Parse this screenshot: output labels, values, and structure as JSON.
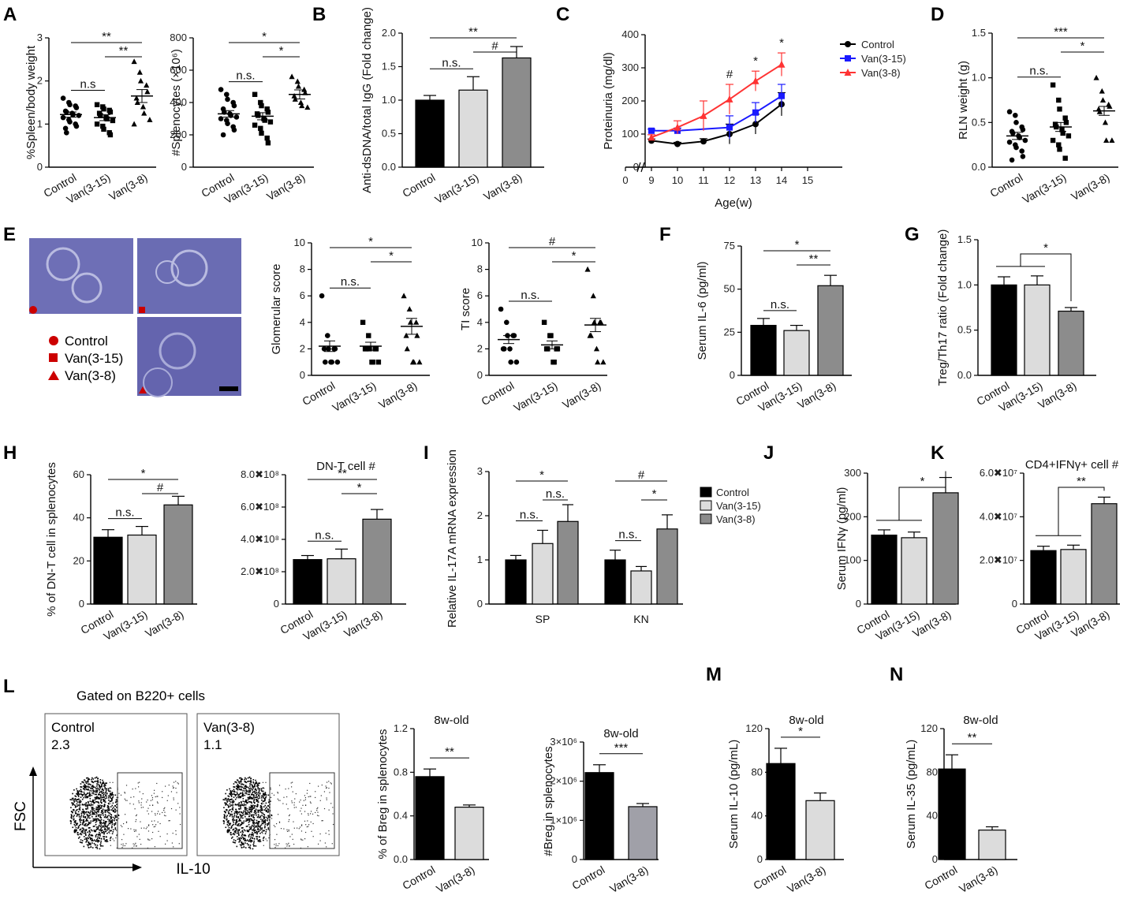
{
  "figure": {
    "panel_letters": [
      "A",
      "B",
      "C",
      "D",
      "E",
      "F",
      "G",
      "H",
      "I",
      "J",
      "K",
      "L",
      "M",
      "N"
    ],
    "groups": [
      "Control",
      "Van(3-15)",
      "Van(3-8)"
    ],
    "colors": {
      "control": "#000000",
      "van315": "#dcdcdc",
      "van38": "#8c8c8c",
      "van38_dark": "#a0a0a8",
      "line_control": "#000000",
      "line_van315": "#1a1aff",
      "line_van38": "#ff3333",
      "histo": "#6a6ab4",
      "marker_red": "#cc0000"
    }
  },
  "panel_e": {
    "legend": [
      "Control",
      "Van(3-15)",
      "Van(3-8)"
    ],
    "image_names": [
      "control-kidney-histology",
      "van315-kidney-histology",
      "van38-kidney-histology"
    ]
  },
  "panel_l": {
    "title": "Gated on B220+ cells",
    "plots": [
      {
        "label": "Control",
        "value": "2.3"
      },
      {
        "label": "Van(3-8)",
        "value": "1.1"
      }
    ],
    "y_axis": "FSC",
    "x_axis": "IL-10"
  },
  "chart_data": [
    {
      "id": "A1",
      "type": "scatter",
      "ylabel": "%Spleen/body weight",
      "ylim": [
        0,
        3
      ],
      "ticks": [
        "0",
        "1",
        "2",
        "3"
      ],
      "categories": [
        "Control",
        "Van(3-15)",
        "Van(3-8)"
      ],
      "means": [
        1.22,
        1.15,
        1.65
      ],
      "sem": [
        0.06,
        0.07,
        0.15
      ],
      "markers": [
        "circle",
        "square",
        "triangle"
      ],
      "points": [
        [
          1.6,
          1.5,
          1.45,
          1.42,
          1.38,
          1.3,
          1.28,
          1.25,
          1.22,
          1.2,
          1.15,
          1.1,
          1.05,
          1.0,
          0.95,
          0.9,
          0.8
        ],
        [
          1.45,
          1.4,
          1.35,
          1.32,
          1.28,
          1.25,
          1.2,
          1.15,
          1.12,
          1.08,
          1.0,
          0.95,
          0.88,
          0.8,
          0.75
        ],
        [
          2.45,
          2.2,
          2.0,
          1.9,
          1.75,
          1.6,
          1.5,
          1.4,
          1.25,
          1.1,
          1.0
        ]
      ],
      "significance": [
        {
          "label": "n.s",
          "from": 0,
          "to": 1
        },
        {
          "label": "**",
          "from": 0,
          "to": 2
        },
        {
          "label": "**",
          "from": 1,
          "to": 2
        }
      ]
    },
    {
      "id": "A2",
      "type": "scatter",
      "ylabel": "#Splenocytes (×10⁶)",
      "ylim": [
        0,
        800
      ],
      "ticks": [
        "0",
        "200",
        "400",
        "600",
        "800"
      ],
      "categories": [
        "Control",
        "Van(3-15)",
        "Van(3-8)"
      ],
      "means": [
        330,
        315,
        450
      ],
      "sem": [
        20,
        22,
        28
      ],
      "markers": [
        "circle",
        "square",
        "triangle"
      ],
      "points": [
        [
          480,
          450,
          420,
          400,
          380,
          360,
          340,
          330,
          320,
          310,
          300,
          290,
          270,
          250,
          230,
          200
        ],
        [
          450,
          400,
          380,
          360,
          340,
          330,
          320,
          300,
          290,
          280,
          260,
          240,
          210,
          180,
          150
        ],
        [
          560,
          530,
          500,
          480,
          460,
          440,
          420,
          400,
          380,
          370
        ]
      ],
      "significance": [
        {
          "label": "n.s.",
          "from": 0,
          "to": 1
        },
        {
          "label": "*",
          "from": 0,
          "to": 2
        },
        {
          "label": "*",
          "from": 1,
          "to": 2
        }
      ]
    },
    {
      "id": "B",
      "type": "bar",
      "ylabel": "Anti-dsDNA/total IgG (Fold change)",
      "ylim": [
        0,
        2.0
      ],
      "ticks": [
        "0.0",
        "0.5",
        "1.0",
        "1.5",
        "2.0"
      ],
      "categories": [
        "Control",
        "Van(3-15)",
        "Van(3-8)"
      ],
      "values": [
        1.0,
        1.15,
        1.63
      ],
      "sem": [
        0.07,
        0.2,
        0.17
      ],
      "significance": [
        {
          "label": "n.s.",
          "from": 0,
          "to": 1
        },
        {
          "label": "**",
          "from": 0,
          "to": 2
        },
        {
          "label": "#",
          "from": 1,
          "to": 2
        }
      ]
    },
    {
      "id": "C",
      "type": "line",
      "ylabel": "Proteinuria (mg/dl)",
      "xlabel": "Age(w)",
      "ylim": [
        0,
        400
      ],
      "xlim": [
        8,
        15
      ],
      "xticks": [
        "0",
        "9",
        "10",
        "11",
        "12",
        "13",
        "14",
        "15"
      ],
      "yticks": [
        "0",
        "100",
        "200",
        "300",
        "400"
      ],
      "x": [
        9,
        10,
        11,
        12,
        13,
        14
      ],
      "series": [
        {
          "name": "Control",
          "values": [
            80,
            70,
            78,
            100,
            130,
            190
          ],
          "sem": [
            5,
            5,
            8,
            30,
            30,
            35
          ]
        },
        {
          "name": "Van(3-15)",
          "values": [
            110,
            110,
            null,
            120,
            165,
            215
          ],
          "sem": [
            5,
            8,
            0,
            35,
            30,
            35
          ]
        },
        {
          "name": "Van(3-8)",
          "values": [
            90,
            120,
            155,
            205,
            260,
            310
          ],
          "sem": [
            8,
            20,
            45,
            45,
            30,
            35
          ]
        }
      ],
      "annotations": [
        {
          "x": 12,
          "label": "#"
        },
        {
          "x": 13,
          "label": "*"
        },
        {
          "x": 14,
          "label": "*"
        }
      ]
    },
    {
      "id": "D",
      "type": "scatter",
      "ylabel": "RLN weight (g)",
      "ylim": [
        0,
        1.5
      ],
      "ticks": [
        "0.0",
        "0.5",
        "1.0",
        "1.5"
      ],
      "categories": [
        "Control",
        "Van(3-15)",
        "Van(3-8)"
      ],
      "means": [
        0.35,
        0.45,
        0.63
      ],
      "sem": [
        0.04,
        0.05,
        0.05
      ],
      "markers": [
        "circle",
        "square",
        "triangle"
      ],
      "points": [
        [
          0.62,
          0.58,
          0.5,
          0.45,
          0.42,
          0.4,
          0.38,
          0.35,
          0.33,
          0.3,
          0.28,
          0.25,
          0.22,
          0.18,
          0.12,
          0.08
        ],
        [
          0.92,
          0.75,
          0.65,
          0.55,
          0.5,
          0.48,
          0.45,
          0.42,
          0.38,
          0.35,
          0.3,
          0.25,
          0.2,
          0.1
        ],
        [
          1.0,
          0.85,
          0.75,
          0.7,
          0.68,
          0.65,
          0.62,
          0.5,
          0.3,
          0.3
        ]
      ],
      "significance": [
        {
          "label": "n.s.",
          "from": 0,
          "to": 1
        },
        {
          "label": "***",
          "from": 0,
          "to": 2
        },
        {
          "label": "*",
          "from": 1,
          "to": 2
        }
      ]
    },
    {
      "id": "E1",
      "type": "scatter",
      "ylabel": "Glomerular score",
      "ylim": [
        0,
        10
      ],
      "ticks": [
        "0",
        "2",
        "4",
        "6",
        "8",
        "10"
      ],
      "categories": [
        "Control",
        "Van(3-15)",
        "Van(3-8)"
      ],
      "means": [
        2.2,
        2.2,
        3.7
      ],
      "sem": [
        0.4,
        0.3,
        0.6
      ],
      "markers": [
        "circle",
        "square",
        "triangle"
      ],
      "points": [
        [
          6,
          3,
          2,
          2,
          2,
          2,
          1,
          1,
          1,
          1
        ],
        [
          4,
          3,
          2,
          2,
          2,
          2,
          2,
          1,
          1,
          1
        ],
        [
          6,
          5,
          4,
          4,
          3,
          3,
          2,
          1,
          1,
          1
        ]
      ],
      "significance": [
        {
          "label": "n.s.",
          "from": 0,
          "to": 1
        },
        {
          "label": "*",
          "from": 0,
          "to": 2
        },
        {
          "label": "*",
          "from": 1,
          "to": 2
        }
      ]
    },
    {
      "id": "E2",
      "type": "scatter",
      "ylabel": "TI score",
      "ylim": [
        0,
        10
      ],
      "ticks": [
        "0",
        "2",
        "4",
        "6",
        "8",
        "10"
      ],
      "categories": [
        "Control",
        "Van(3-15)",
        "Van(3-8)"
      ],
      "means": [
        2.7,
        2.3,
        3.8
      ],
      "sem": [
        0.3,
        0.3,
        0.5
      ],
      "markers": [
        "circle",
        "square",
        "triangle"
      ],
      "points": [
        [
          5,
          4,
          3,
          3,
          3,
          2,
          2,
          2,
          1,
          1
        ],
        [
          4,
          3,
          3,
          2,
          2,
          2,
          2,
          1,
          1
        ],
        [
          8,
          6,
          4,
          4,
          4,
          3,
          3,
          2,
          1,
          1
        ]
      ],
      "significance": [
        {
          "label": "n.s.",
          "from": 0,
          "to": 1
        },
        {
          "label": "#",
          "from": 0,
          "to": 2
        },
        {
          "label": "*",
          "from": 1,
          "to": 2
        }
      ]
    },
    {
      "id": "F",
      "type": "bar",
      "ylabel": "Serum IL-6 (pg/ml)",
      "ylim": [
        0,
        75
      ],
      "ticks": [
        "0",
        "25",
        "50",
        "75"
      ],
      "categories": [
        "Control",
        "Van(3-15)",
        "Van(3-8)"
      ],
      "values": [
        29,
        26,
        52
      ],
      "sem": [
        4,
        3,
        6
      ],
      "significance": [
        {
          "label": "n.s.",
          "from": 0,
          "to": 1
        },
        {
          "label": "*",
          "from": 0,
          "to": 2
        },
        {
          "label": "**",
          "from": 1,
          "to": 2
        }
      ]
    },
    {
      "id": "G",
      "type": "bar",
      "ylabel": "Treg/Th17 ratio (Fold change)",
      "ylim": [
        0,
        1.5
      ],
      "ticks": [
        "0.0",
        "0.5",
        "1.0",
        "1.5"
      ],
      "categories": [
        "Control",
        "Van(3-15)",
        "Van(3-8)"
      ],
      "values": [
        1.0,
        1.0,
        0.71
      ],
      "sem": [
        0.09,
        0.1,
        0.04
      ],
      "significance": [
        {
          "label": "*",
          "group": [
            0,
            1
          ],
          "to": 2
        }
      ]
    },
    {
      "id": "H1",
      "type": "bar",
      "ylabel": "% of DN-T cell in splenocytes",
      "ylim": [
        0,
        60
      ],
      "ticks": [
        "0",
        "20",
        "40",
        "60"
      ],
      "categories": [
        "Control",
        "Van(3-15)",
        "Van(3-8)"
      ],
      "values": [
        31,
        32,
        46
      ],
      "sem": [
        3.5,
        4,
        4
      ],
      "significance": [
        {
          "label": "n.s.",
          "from": 0,
          "to": 1
        },
        {
          "label": "*",
          "from": 0,
          "to": 2
        },
        {
          "label": "#",
          "from": 1,
          "to": 2
        }
      ]
    },
    {
      "id": "H2",
      "type": "bar",
      "title": "DN-T cell #",
      "ylabel": "",
      "ylim": [
        0,
        8
      ],
      "ticks": [
        "0",
        "2.0✖10⁸",
        "4.0✖10⁸",
        "6.0✖10⁸",
        "8.0✖10⁸"
      ],
      "categories": [
        "Control",
        "Van(3-15)",
        "Van(3-8)"
      ],
      "values": [
        2.75,
        2.8,
        5.25
      ],
      "sem": [
        0.25,
        0.6,
        0.6
      ],
      "significance": [
        {
          "label": "n.s.",
          "from": 0,
          "to": 1
        },
        {
          "label": "**",
          "from": 0,
          "to": 2
        },
        {
          "label": "*",
          "from": 1,
          "to": 2
        }
      ]
    },
    {
      "id": "I",
      "type": "bar",
      "ylabel": "Relative IL-17A mRNA expression",
      "ylim": [
        0,
        3
      ],
      "ticks": [
        "0",
        "1",
        "2",
        "3"
      ],
      "categories": [
        "SP",
        "KN"
      ],
      "legend": [
        "Control",
        "Van(3-15)",
        "Van(3-8)"
      ],
      "series": [
        {
          "name": "Control",
          "values": [
            1.0,
            1.0
          ],
          "sem": [
            0.1,
            0.22
          ]
        },
        {
          "name": "Van(3-15)",
          "values": [
            1.37,
            0.75
          ],
          "sem": [
            0.3,
            0.1
          ]
        },
        {
          "name": "Van(3-8)",
          "values": [
            1.87,
            1.7
          ],
          "sem": [
            0.38,
            0.32
          ]
        }
      ],
      "significance": [
        {
          "cat": 0,
          "label": "n.s.",
          "from": 0,
          "to": 1
        },
        {
          "cat": 0,
          "label": "*",
          "from": 0,
          "to": 2
        },
        {
          "cat": 0,
          "label": "n.s.",
          "from": 1,
          "to": 2
        },
        {
          "cat": 1,
          "label": "n.s.",
          "from": 0,
          "to": 1
        },
        {
          "cat": 1,
          "label": "#",
          "from": 0,
          "to": 2
        },
        {
          "cat": 1,
          "label": "*",
          "from": 1,
          "to": 2
        }
      ]
    },
    {
      "id": "J",
      "type": "bar",
      "ylabel": "Serum IFNγ (pg/ml)",
      "ylim": [
        0,
        300
      ],
      "ticks": [
        "0",
        "100",
        "200",
        "300"
      ],
      "categories": [
        "Control",
        "Van(3-15)",
        "Van(3-8)"
      ],
      "values": [
        158,
        152,
        255
      ],
      "sem": [
        12,
        13,
        35
      ],
      "significance": [
        {
          "label": "*",
          "group": [
            0,
            1
          ],
          "to": 2
        }
      ]
    },
    {
      "id": "K",
      "type": "bar",
      "title": "CD4+IFNγ+ cell #",
      "ylabel": "",
      "ylim": [
        0,
        6
      ],
      "ticks": [
        "0",
        "2.0✖10⁷",
        "4.0✖10⁷",
        "6.0✖10⁷"
      ],
      "categories": [
        "Control",
        "Van(3-15)",
        "Van(3-8)"
      ],
      "values": [
        2.45,
        2.5,
        4.6
      ],
      "sem": [
        0.2,
        0.2,
        0.3
      ],
      "significance": [
        {
          "label": "**",
          "group": [
            0,
            1
          ],
          "to": 2
        }
      ]
    },
    {
      "id": "L1",
      "type": "bar",
      "title": "8w-old",
      "ylabel": "% of Breg in splenocytes",
      "ylim": [
        0,
        1.2
      ],
      "ticks": [
        "0.0",
        "0.4",
        "0.8",
        "1.2"
      ],
      "categories": [
        "Control",
        "Van(3-8)"
      ],
      "values": [
        0.76,
        0.48
      ],
      "sem": [
        0.07,
        0.02
      ],
      "significance": [
        {
          "label": "**",
          "from": 0,
          "to": 1
        }
      ]
    },
    {
      "id": "L2",
      "type": "bar",
      "title": "8w-old",
      "ylabel": "#Breg in splenocytes",
      "ylim": [
        0,
        3
      ],
      "ticks": [
        "0",
        "1×10⁶",
        "2×10⁶",
        "3×10⁶"
      ],
      "categories": [
        "Control",
        "Van(3-8)"
      ],
      "values": [
        2.22,
        1.35
      ],
      "sem": [
        0.2,
        0.08
      ],
      "significance": [
        {
          "label": "***",
          "from": 0,
          "to": 1
        }
      ]
    },
    {
      "id": "M",
      "type": "bar",
      "title": "8w-old",
      "ylabel": "Serum IL-10 (pg/mL)",
      "ylim": [
        0,
        120
      ],
      "ticks": [
        "0",
        "40",
        "80",
        "120"
      ],
      "categories": [
        "Control",
        "Van(3-8)"
      ],
      "values": [
        88,
        54
      ],
      "sem": [
        14,
        7
      ],
      "significance": [
        {
          "label": "*",
          "from": 0,
          "to": 1
        }
      ]
    },
    {
      "id": "N",
      "type": "bar",
      "title": "8w-old",
      "ylabel": "Serum IL-35 (pg/mL)",
      "ylim": [
        0,
        120
      ],
      "ticks": [
        "0",
        "40",
        "80",
        "120"
      ],
      "categories": [
        "Control",
        "Van(3-8)"
      ],
      "values": [
        83,
        27
      ],
      "sem": [
        13,
        3
      ],
      "significance": [
        {
          "label": "**",
          "from": 0,
          "to": 1
        }
      ]
    }
  ]
}
